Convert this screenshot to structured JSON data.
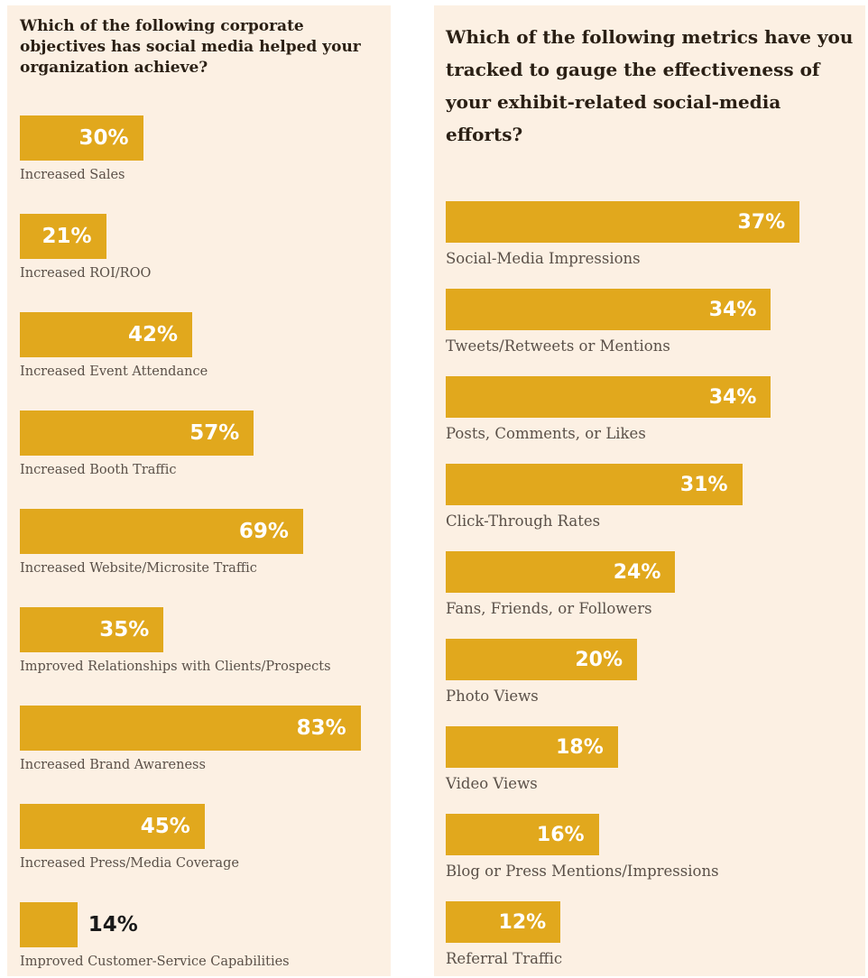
{
  "chart_data": [
    {
      "type": "bar",
      "orientation": "horizontal",
      "title": "Which of the following corporate objectives has social media helped your organization achieve?",
      "categories": [
        "Increased Sales",
        "Increased ROI/ROO",
        "Increased Event Attendance",
        "Increased Booth Traffic",
        "Increased Website/Microsite Traffic",
        "Improved Relationships with Clients/Prospects",
        "Increased Brand Awareness",
        "Increased Press/Media Coverage",
        "Improved Customer-Service Capabilities"
      ],
      "values": [
        30,
        21,
        42,
        57,
        69,
        35,
        83,
        45,
        14
      ],
      "value_labels": [
        "30%",
        "21%",
        "42%",
        "57%",
        "69%",
        "35%",
        "83%",
        "45%",
        "14%"
      ],
      "unit": "%",
      "bar_color": "#e1a81d"
    },
    {
      "type": "bar",
      "orientation": "horizontal",
      "title": "Which of the following metrics have you tracked to gauge the effectiveness of your exhibit-related social-media efforts?",
      "categories": [
        "Social-Media Impressions",
        "Tweets/Retweets or Mentions",
        "Posts, Comments, or Likes",
        "Click-Through Rates",
        "Fans, Friends, or Followers",
        "Photo Views",
        "Video Views",
        "Blog or Press Mentions/Impressions",
        "Referral Traffic"
      ],
      "values": [
        37,
        34,
        34,
        31,
        24,
        20,
        18,
        16,
        12
      ],
      "value_labels": [
        "37%",
        "34%",
        "34%",
        "31%",
        "24%",
        "20%",
        "18%",
        "16%",
        "12%"
      ],
      "unit": "%",
      "bar_color": "#e1a81d"
    }
  ],
  "colors": {
    "panel_background": "#fcf0e3",
    "bar": "#e1a81d",
    "title_text": "#2a1f14",
    "label_text": "#5a5048"
  }
}
